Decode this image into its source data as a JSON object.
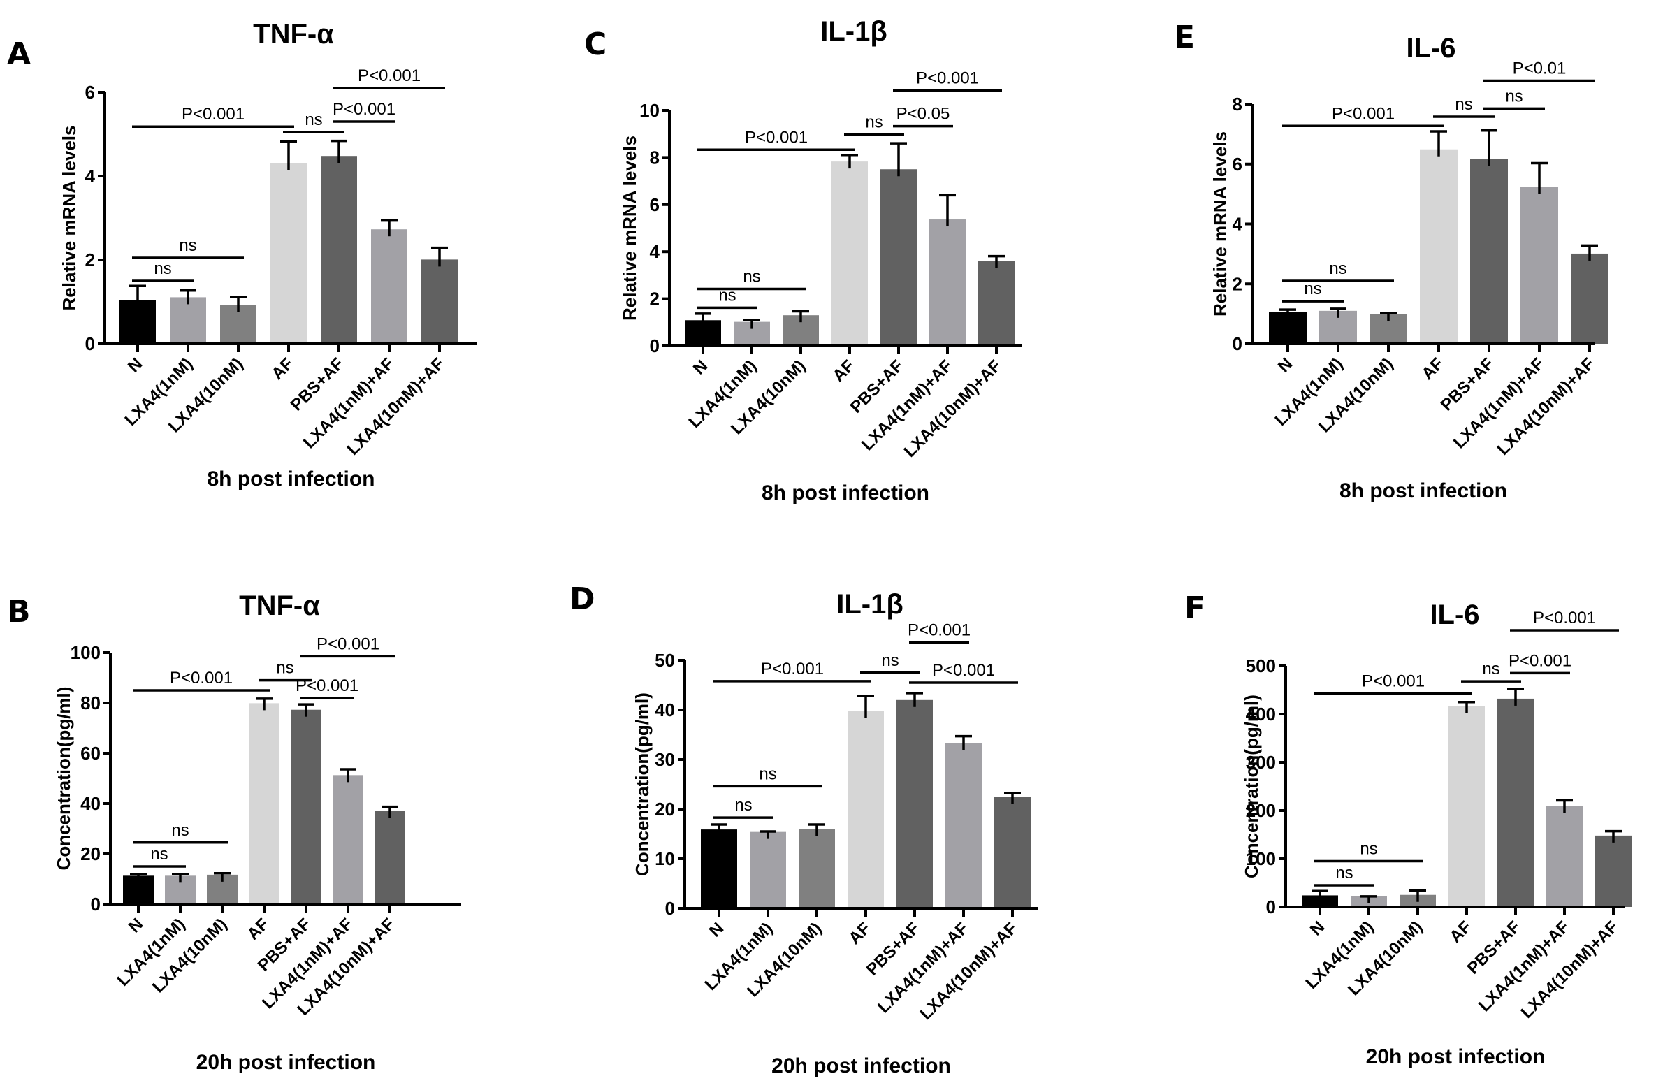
{
  "figure": {
    "group_colors": [
      "#000000",
      "#a2a1a6",
      "#808080",
      "#d6d6d6",
      "#616161",
      "#a2a1a6",
      "#616161"
    ]
  },
  "chart_data": [
    {
      "id": "A",
      "panel_letter": "A",
      "type": "bar",
      "title": "TNF-α",
      "ylabel": "Relative mRNA levels",
      "xlabel": "8h post infection",
      "categories": [
        "N",
        "LXA4(1nM)",
        "LXA4(10nM)",
        "AF",
        "PBS+AF",
        "LXA4(1nM)+AF",
        "LXA4(10nM)+AF"
      ],
      "values": [
        1.05,
        1.11,
        0.93,
        4.31,
        4.48,
        2.73,
        2.01
      ],
      "error_upper": [
        1.38,
        1.27,
        1.12,
        4.83,
        4.84,
        2.94,
        2.29
      ],
      "ylim": [
        0,
        6
      ],
      "yticks": [
        0,
        2,
        4,
        6
      ],
      "grid": false,
      "significance": [
        {
          "from": 0,
          "to": 1,
          "label": "ns",
          "level": 1.5
        },
        {
          "from": 0,
          "to": 2,
          "label": "ns",
          "level": 2.05
        },
        {
          "from": 0,
          "to": 3,
          "label": "P<0.001",
          "level": 5.18
        },
        {
          "from": 3,
          "to": 4,
          "label": "ns",
          "level": 5.05
        },
        {
          "from": 4,
          "to": 5,
          "label": "P<0.001",
          "level": 5.3
        },
        {
          "from": 4,
          "to": 6,
          "label": "P<0.001",
          "level": 6.1
        }
      ]
    },
    {
      "id": "B",
      "panel_letter": "B",
      "type": "bar",
      "title": "TNF-α",
      "ylabel": "Concentration(pg/ml)",
      "xlabel": "20h post infection",
      "categories": [
        "N",
        "LXA4(1nM)",
        "LXA4(10nM)",
        "AF",
        "PBS+AF",
        "LXA4(1nM)+AF",
        "LXA4(10nM)+AF"
      ],
      "values": [
        11.3,
        11.3,
        11.7,
        79.9,
        77.3,
        51.3,
        37.0
      ],
      "error_upper": [
        11.9,
        12.0,
        12.3,
        81.7,
        79.4,
        53.6,
        38.7
      ],
      "ylim": [
        0,
        100
      ],
      "yticks": [
        0,
        20,
        40,
        60,
        80,
        100
      ],
      "grid": false,
      "significance": [
        {
          "from": 0,
          "to": 1,
          "label": "ns",
          "level": 15
        },
        {
          "from": 0,
          "to": 2,
          "label": "ns",
          "level": 24.5
        },
        {
          "from": 0,
          "to": 3,
          "label": "P<0.001",
          "level": 85
        },
        {
          "from": 3,
          "to": 4,
          "label": "ns",
          "level": 89
        },
        {
          "from": 4,
          "to": 5,
          "label": "P<0.001",
          "level": 82
        },
        {
          "from": 4,
          "to": 6,
          "label": "P<0.001",
          "level": 98.5
        }
      ]
    },
    {
      "id": "C",
      "panel_letter": "C",
      "type": "bar",
      "title": "IL-1β",
      "ylabel": "Relative mRNA levels",
      "xlabel": "8h post infection",
      "categories": [
        "N",
        "LXA4(1nM)",
        "LXA4(10nM)",
        "AF",
        "PBS+AF",
        "LXA4(1nM)+AF",
        "LXA4(10nM)+AF"
      ],
      "values": [
        1.09,
        1.02,
        1.3,
        7.83,
        7.5,
        5.37,
        3.6
      ],
      "error_upper": [
        1.37,
        1.09,
        1.47,
        8.11,
        8.6,
        6.4,
        3.81
      ],
      "ylim": [
        0,
        10
      ],
      "yticks": [
        0,
        2,
        4,
        6,
        8,
        10
      ],
      "grid": false,
      "significance": [
        {
          "from": 0,
          "to": 1,
          "label": "ns",
          "level": 1.62
        },
        {
          "from": 0,
          "to": 2,
          "label": "ns",
          "level": 2.42
        },
        {
          "from": 0,
          "to": 3,
          "label": "P<0.001",
          "level": 8.33
        },
        {
          "from": 3,
          "to": 4,
          "label": "ns",
          "level": 8.98
        },
        {
          "from": 4,
          "to": 5,
          "label": "P<0.05",
          "level": 9.33
        },
        {
          "from": 4,
          "to": 6,
          "label": "P<0.001",
          "level": 10.85
        }
      ]
    },
    {
      "id": "D",
      "panel_letter": "D",
      "type": "bar",
      "title": "IL-1β",
      "ylabel": "Concentration(pg/ml)",
      "xlabel": "20h post infection",
      "categories": [
        "N",
        "LXA4(1nM)",
        "LXA4(10nM)",
        "AF",
        "PBS+AF",
        "LXA4(1nM)+AF",
        "LXA4(10nM)+AF"
      ],
      "values": [
        15.9,
        15.4,
        16.0,
        39.8,
        42.0,
        33.3,
        22.5
      ],
      "error_upper": [
        16.9,
        15.5,
        16.9,
        42.8,
        43.4,
        34.7,
        23.2
      ],
      "ylim": [
        0,
        50
      ],
      "yticks": [
        0,
        10,
        20,
        30,
        40,
        50
      ],
      "grid": false,
      "significance": [
        {
          "from": 0,
          "to": 1,
          "label": "ns",
          "level": 18.3
        },
        {
          "from": 0,
          "to": 2,
          "label": "ns",
          "level": 24.6
        },
        {
          "from": 0,
          "to": 3,
          "label": "P<0.001",
          "level": 45.8
        },
        {
          "from": 3,
          "to": 4,
          "label": "ns",
          "level": 47.5
        },
        {
          "from": 4,
          "to": 5,
          "label": "P<0.001",
          "level": 53.6
        },
        {
          "from": 4,
          "to": 6,
          "label": "P<0.001",
          "level": 45.5
        }
      ]
    },
    {
      "id": "E",
      "panel_letter": "E",
      "type": "bar",
      "title": "IL-6",
      "ylabel": "Relative mRNA levels",
      "xlabel": "8h post infection",
      "categories": [
        "N",
        "LXA4(1nM)",
        "LXA4(10nM)",
        "AF",
        "PBS+AF",
        "LXA4(1nM)+AF",
        "LXA4(10nM)+AF"
      ],
      "values": [
        1.05,
        1.1,
        0.99,
        6.49,
        6.16,
        5.24,
        3.01
      ],
      "error_upper": [
        1.14,
        1.17,
        1.03,
        7.09,
        7.12,
        6.03,
        3.28
      ],
      "ylim": [
        0,
        8
      ],
      "yticks": [
        0,
        2,
        4,
        6,
        8
      ],
      "grid": false,
      "significance": [
        {
          "from": 0,
          "to": 1,
          "label": "ns",
          "level": 1.42
        },
        {
          "from": 0,
          "to": 2,
          "label": "ns",
          "level": 2.1
        },
        {
          "from": 0,
          "to": 3,
          "label": "P<0.001",
          "level": 7.27
        },
        {
          "from": 3,
          "to": 4,
          "label": "ns",
          "level": 7.58
        },
        {
          "from": 4,
          "to": 5,
          "label": "ns",
          "level": 7.85
        },
        {
          "from": 4,
          "to": 6,
          "label": "P<0.01",
          "level": 8.78
        }
      ]
    },
    {
      "id": "F",
      "panel_letter": "F",
      "type": "bar",
      "title": "IL-6",
      "ylabel": "Concentration(pg/ml)",
      "xlabel": "20h post infection",
      "categories": [
        "N",
        "LXA4(1nM)",
        "LXA4(10nM)",
        "AF",
        "PBS+AF",
        "LXA4(1nM)+AF",
        "LXA4(10nM)+AF"
      ],
      "values": [
        24,
        22,
        25,
        416,
        432,
        210,
        148
      ],
      "error_upper": [
        33,
        22,
        34,
        425,
        452,
        221,
        157
      ],
      "ylim": [
        0,
        500
      ],
      "yticks": [
        0,
        100,
        200,
        300,
        400,
        500
      ],
      "grid": false,
      "significance": [
        {
          "from": 0,
          "to": 1,
          "label": "ns",
          "level": 45
        },
        {
          "from": 0,
          "to": 2,
          "label": "ns",
          "level": 95
        },
        {
          "from": 0,
          "to": 3,
          "label": "P<0.001",
          "level": 443
        },
        {
          "from": 3,
          "to": 4,
          "label": "ns",
          "level": 468
        },
        {
          "from": 4,
          "to": 5,
          "label": "P<0.001",
          "level": 485
        },
        {
          "from": 4,
          "to": 6,
          "label": "P<0.001",
          "level": 574
        }
      ]
    }
  ]
}
